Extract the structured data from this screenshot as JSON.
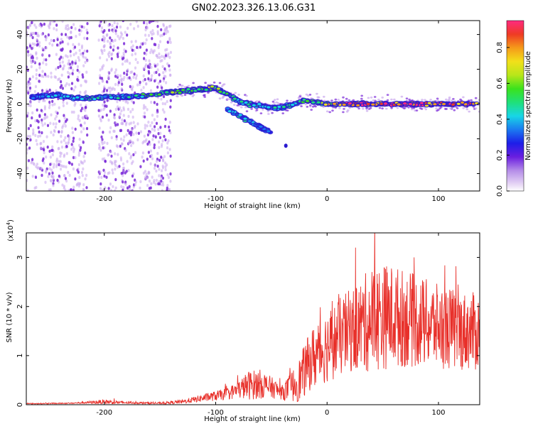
{
  "title": "GN02.2023.326.13.06.G31",
  "colors": {
    "snr_line": "#e8302a",
    "weak_scatter": "#c9a6ee",
    "mid_scatter": "#7a2ad8",
    "strong_scatter": "#2a1ad0"
  },
  "chart_data": [
    {
      "type": "heatmap",
      "xlabel": "Height of straight line (km)",
      "ylabel": "Frequency (Hz)",
      "xlim": [
        -270,
        137
      ],
      "ylim": [
        -50,
        48
      ],
      "x_ticks": [
        -200,
        -100,
        0,
        100
      ],
      "x_tick_labels": [
        "-200",
        "-100",
        "0",
        "100"
      ],
      "y_ticks": [
        -40,
        -20,
        0,
        20,
        40
      ],
      "y_tick_labels": [
        "-40",
        "-20",
        "0",
        "20",
        "40"
      ],
      "colorbar": {
        "label": "Normalized spectral amplitude",
        "range": [
          0,
          0.95
        ],
        "ticks": [
          0.0,
          0.2,
          0.4,
          0.6,
          0.8
        ],
        "tick_labels": [
          "0.0",
          "0.2",
          "0.4",
          "0.6",
          "0.8"
        ]
      },
      "ridge": {
        "x": [
          -265,
          -240,
          -220,
          -200,
          -180,
          -160,
          -140,
          -120,
          -100,
          -90,
          -80,
          -70,
          -60,
          -50,
          -40,
          -30,
          -20,
          -10,
          0,
          20,
          40,
          60,
          80,
          100,
          120,
          135
        ],
        "y": [
          4,
          5,
          3,
          4,
          4,
          5,
          7,
          8,
          9,
          6,
          2,
          0,
          -1,
          -2,
          -2,
          0,
          2,
          1,
          0,
          0,
          0,
          0,
          0,
          0,
          0,
          0
        ],
        "amplitude": [
          0.3,
          0.4,
          0.45,
          0.45,
          0.4,
          0.5,
          0.55,
          0.6,
          0.6,
          0.5,
          0.45,
          0.45,
          0.4,
          0.45,
          0.45,
          0.5,
          0.55,
          0.6,
          0.7,
          0.85,
          0.9,
          0.9,
          0.9,
          0.85,
          0.85,
          0.8
        ]
      },
      "branch": {
        "x": [
          -90,
          -80,
          -70,
          -60,
          -55,
          -50
        ],
        "y": [
          -3,
          -6,
          -10,
          -13,
          -15,
          -16
        ],
        "amplitude": [
          0.35,
          0.4,
          0.4,
          0.35,
          0.35,
          0.3
        ]
      }
    },
    {
      "type": "line",
      "xlabel": "Height of straight line (km)",
      "ylabel": "SNR (10 * v/v)",
      "y_multiplier": "(x10",
      "y_multiplier_exp": "4",
      "y_multiplier_close": ")",
      "xlim": [
        -270,
        137
      ],
      "ylim": [
        0,
        3.5
      ],
      "x_ticks": [
        -200,
        -100,
        0,
        100
      ],
      "x_tick_labels": [
        "-200",
        "-100",
        "0",
        "100"
      ],
      "y_ticks": [
        0,
        1,
        2,
        3
      ],
      "y_tick_labels": [
        "0",
        "1",
        "2",
        "3"
      ],
      "envelope": {
        "x": [
          -270,
          -230,
          -210,
          -200,
          -180,
          -150,
          -130,
          -120,
          -110,
          -100,
          -90,
          -80,
          -70,
          -60,
          -50,
          -40,
          -30,
          -25,
          -20,
          -15,
          -10,
          -5,
          0,
          10,
          20,
          30,
          40,
          50,
          60,
          70,
          80,
          90,
          100,
          110,
          120,
          130,
          137
        ],
        "mean": [
          0.02,
          0.03,
          0.05,
          0.06,
          0.04,
          0.03,
          0.06,
          0.1,
          0.14,
          0.18,
          0.22,
          0.3,
          0.4,
          0.42,
          0.35,
          0.25,
          0.4,
          0.5,
          0.7,
          0.9,
          1.0,
          1.1,
          1.2,
          1.35,
          1.5,
          1.6,
          1.75,
          1.8,
          1.8,
          1.75,
          1.7,
          1.65,
          1.6,
          1.55,
          1.5,
          1.5,
          1.45
        ],
        "spread": [
          0.01,
          0.01,
          0.03,
          0.05,
          0.02,
          0.02,
          0.04,
          0.06,
          0.08,
          0.1,
          0.12,
          0.18,
          0.3,
          0.3,
          0.22,
          0.15,
          0.35,
          0.45,
          0.55,
          0.6,
          0.7,
          0.7,
          0.75,
          0.8,
          0.85,
          0.95,
          1.1,
          1.1,
          1.05,
          1.0,
          0.95,
          0.9,
          0.85,
          0.85,
          0.8,
          0.8,
          0.8
        ]
      }
    }
  ]
}
